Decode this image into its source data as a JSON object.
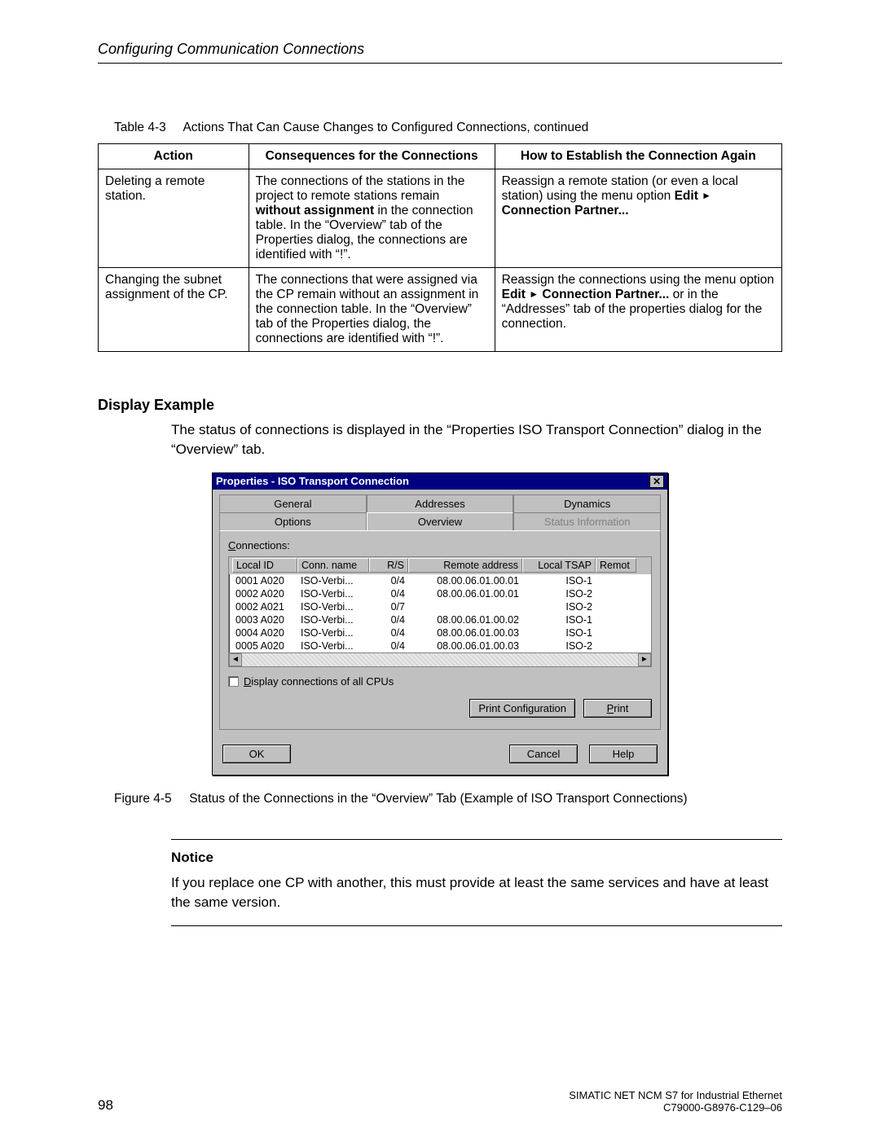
{
  "header": "Configuring Communication Connections",
  "table": {
    "caption_label": "Table 4-3",
    "caption_text": "Actions That Can Cause Changes to Configured Connections, continued",
    "heads": {
      "action": "Action",
      "consequences": "Consequences for the Connections",
      "establish": "How to Establish the Connection Again"
    },
    "rows": [
      {
        "action": "Deleting a remote station.",
        "consequences_pre": "The connections of the stations in the project to remote stations remain ",
        "consequences_bold": "without assignment",
        "consequences_post": " in the connection table. In the “Overview” tab of the Properties dialog, the connections are identified with “!”.",
        "establish_pre": "Reassign a remote station (or even a local station) using the menu option ",
        "establish_b1": "Edit",
        "establish_mid": " ",
        "establish_b2": "Connection Partner...",
        "establish_post": ""
      },
      {
        "action": "Changing the subnet assignment of the CP.",
        "consequences_pre": "The connections that were assigned via the CP remain without an assignment in the connection table. In the “Overview” tab of the Properties dialog, the connections are identified with “!”.",
        "consequences_bold": "",
        "consequences_post": "",
        "establish_pre": "Reassign the connections using the menu option  ",
        "establish_b1": "Edit",
        "establish_mid": " ",
        "establish_b2": "Connection Partner...",
        "establish_post": "  or  in the “Addresses” tab of the properties dialog for the connection."
      }
    ]
  },
  "section": {
    "heading": "Display Example",
    "para": "The status of connections is displayed in the “Properties ISO Transport Connection” dialog in the “Overview” tab."
  },
  "dialog": {
    "title": "Properties - ISO Transport Connection",
    "close": "✕",
    "tabs_row1": [
      "General",
      "Addresses",
      "Dynamics"
    ],
    "tabs_row2": [
      "Options",
      "Overview",
      "Status Information"
    ],
    "active_tab_index_row2": 1,
    "disabled_tab_index_row2": 2,
    "connections_label_pre": "C",
    "connections_label_post": "onnections:",
    "columns": [
      "Local ID",
      "Conn. name",
      "R/S",
      "Remote address",
      "Local TSAP",
      "Remot"
    ],
    "rows": [
      [
        "0001 A020",
        "ISO-Verbi...",
        "0/4",
        "08.00.06.01.00.01",
        "ISO-1",
        ""
      ],
      [
        "0002 A020",
        "ISO-Verbi...",
        "0/4",
        "08.00.06.01.00.01",
        "ISO-2",
        ""
      ],
      [
        "0002 A021",
        "ISO-Verbi...",
        "0/7",
        "",
        "ISO-2",
        ""
      ],
      [
        "0003 A020",
        "ISO-Verbi...",
        "0/4",
        "08.00.06.01.00.02",
        "ISO-1",
        ""
      ],
      [
        "0004 A020",
        "ISO-Verbi...",
        "0/4",
        "08.00.06.01.00.03",
        "ISO-1",
        ""
      ],
      [
        "0005 A020",
        "ISO-Verbi...",
        "0/4",
        "08.00.06.01.00.03",
        "ISO-2",
        ""
      ]
    ],
    "checkbox_label_pre": "D",
    "checkbox_label_post": "isplay connections of all CPUs",
    "btn_print_config": "Print Configuration",
    "btn_print": "Print",
    "btn_ok": "OK",
    "btn_cancel": "Cancel",
    "btn_help": "Help",
    "scroll_left": "◄",
    "scroll_right": "►"
  },
  "figure": {
    "label": "Figure 4-5",
    "text": "Status of the Connections in the “Overview” Tab (Example of ISO Transport Connections)"
  },
  "notice": {
    "title": "Notice",
    "text": "If you replace one CP with another, this must provide at least the same services and have at least the same version."
  },
  "footer": {
    "pagenum": "98",
    "line1": "SIMATIC NET NCM S7 for Industrial Ethernet",
    "line2": "C79000-G8976-C129–06"
  },
  "triangle": "►"
}
